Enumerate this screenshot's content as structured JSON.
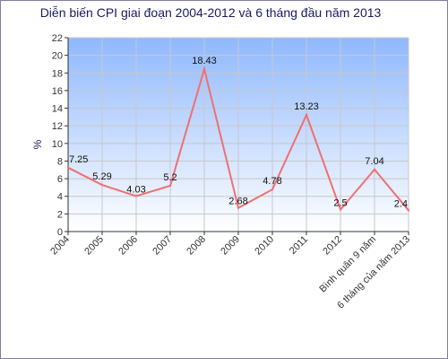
{
  "chart_data": {
    "type": "line",
    "title": "Diễn biến CPI giai đoạn 2004-2012 và 6 tháng đầu năm 2013",
    "xlabel": "",
    "ylabel": "%",
    "categories": [
      "2004",
      "2005",
      "2006",
      "2007",
      "2008",
      "2009",
      "2010",
      "2011",
      "2012",
      "Bình quân 9 năm",
      "6 tháng của năm 2013"
    ],
    "series": [
      {
        "values": [
          7.25,
          5.29,
          4.03,
          5.2,
          18.43,
          2.68,
          4.78,
          13.23,
          2.5,
          7.04,
          2.4
        ],
        "labels": [
          "7.25",
          "5.29",
          "4.03",
          "5.2",
          "18.43",
          "2.68",
          "4.78",
          "13.23",
          "2.5",
          "7.04",
          "2.4"
        ]
      }
    ],
    "ylim": [
      0,
      22
    ],
    "yticks": [
      "0",
      "2",
      "4",
      "6",
      "8",
      "10",
      "12",
      "14",
      "16",
      "18",
      "20",
      "22"
    ],
    "grid": true,
    "legend": "none",
    "colors": {
      "line": "#f07070",
      "plot_top": "#8fb8ff",
      "plot_bottom": "#ffffff",
      "grid": "#c8c8c8",
      "title": "#1a1a5e",
      "axis": "#333333"
    }
  }
}
